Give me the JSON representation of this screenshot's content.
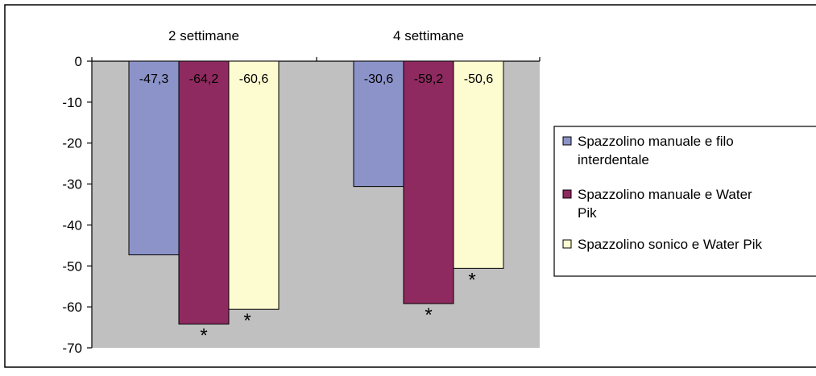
{
  "chart_data": {
    "type": "bar",
    "categories": [
      "2 settimane",
      "4 settimane"
    ],
    "series": [
      {
        "name": "Spazzolino manuale e filo interdentale",
        "values": [
          -47.3,
          -30.6
        ],
        "labels": [
          "-47,3",
          "-30,6"
        ],
        "significance": [
          "",
          ""
        ],
        "color": "#8c93c9"
      },
      {
        "name": "Spazzolino manuale e Water Pik",
        "values": [
          -64.2,
          -59.2
        ],
        "labels": [
          "-64,2",
          "-59,2"
        ],
        "significance": [
          "*",
          "*"
        ],
        "color": "#8e2a5f"
      },
      {
        "name": "Spazzolino sonico e Water Pik",
        "values": [
          -60.6,
          -50.6
        ],
        "labels": [
          "-60,6",
          "-50,6"
        ],
        "significance": [
          "*",
          "*"
        ],
        "color": "#fdfbd0"
      }
    ],
    "ylim": [
      -70,
      0
    ],
    "yticks": [
      0,
      -10,
      -20,
      -30,
      -40,
      -50,
      -60,
      -70
    ],
    "grid": false,
    "legend_position": "right",
    "colors": {
      "plot_background": "#c0c0c0",
      "frame": "#000000"
    },
    "legend": {
      "lines": [
        [
          "Spazzolino manuale e filo",
          "interdentale"
        ],
        [
          "Spazzolino manuale e Water",
          "Pik"
        ],
        [
          "Spazzolino sonico e Water Pik"
        ]
      ]
    }
  }
}
